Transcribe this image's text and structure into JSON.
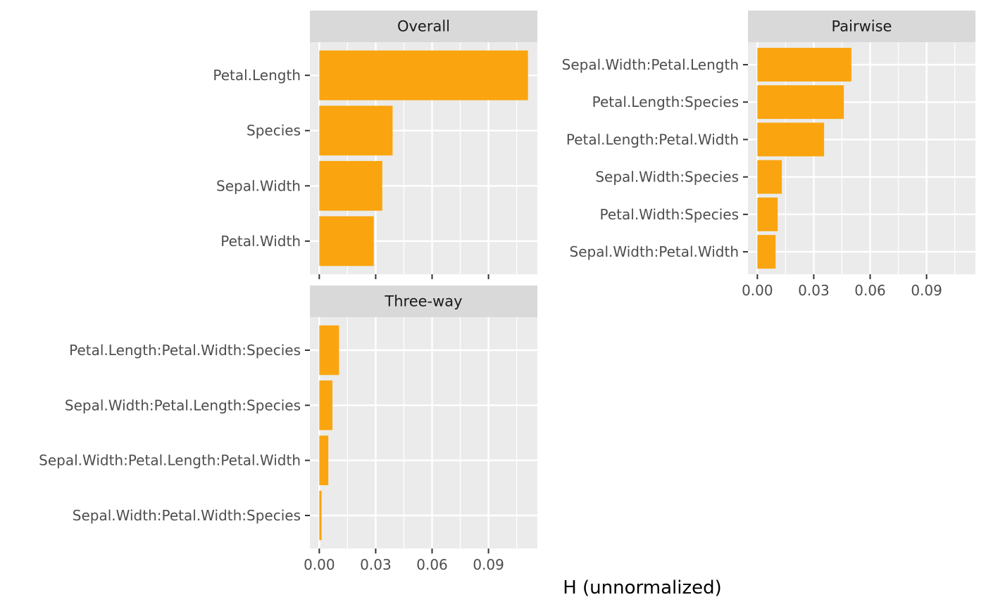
{
  "chart_data": {
    "type": "bar",
    "orientation": "horizontal",
    "xlabel": "H (unnormalized)",
    "bar_color": "#FAA50F",
    "panel_background": "#EBEBEB",
    "strip_background": "#D9D9D9",
    "grid_color": "#FFFFFF",
    "panels": [
      {
        "title": "Overall",
        "categories": [
          "Petal.Length",
          "Species",
          "Sepal.Width",
          "Petal.Width"
        ],
        "values": [
          0.111,
          0.039,
          0.0335,
          0.029
        ],
        "xlim": [
          -0.005,
          0.116
        ],
        "xticks": [
          0.0,
          0.03,
          0.06,
          0.09
        ],
        "xtick_labels": [
          "0.00",
          "0.03",
          "0.06",
          "0.09"
        ],
        "show_xtick_labels": false
      },
      {
        "title": "Pairwise",
        "categories": [
          "Sepal.Width:Petal.Length",
          "Petal.Length:Species",
          "Petal.Length:Petal.Width",
          "Sepal.Width:Species",
          "Petal.Width:Species",
          "Sepal.Width:Petal.Width"
        ],
        "values": [
          0.05,
          0.046,
          0.0355,
          0.013,
          0.0108,
          0.0097
        ],
        "xlim": [
          -0.005,
          0.116
        ],
        "xticks": [
          0.0,
          0.03,
          0.06,
          0.09
        ],
        "xtick_labels": [
          "0.00",
          "0.03",
          "0.06",
          "0.09"
        ],
        "show_xtick_labels": true
      },
      {
        "title": "Three-way",
        "categories": [
          "Petal.Length:Petal.Width:Species",
          "Sepal.Width:Petal.Length:Species",
          "Sepal.Width:Petal.Length:Petal.Width",
          "Sepal.Width:Petal.Width:Species"
        ],
        "values": [
          0.0105,
          0.007,
          0.0048,
          0.0012
        ],
        "xlim": [
          -0.005,
          0.116
        ],
        "xticks": [
          0.0,
          0.03,
          0.06,
          0.09
        ],
        "xtick_labels": [
          "0.00",
          "0.03",
          "0.06",
          "0.09"
        ],
        "show_xtick_labels": true
      }
    ]
  }
}
